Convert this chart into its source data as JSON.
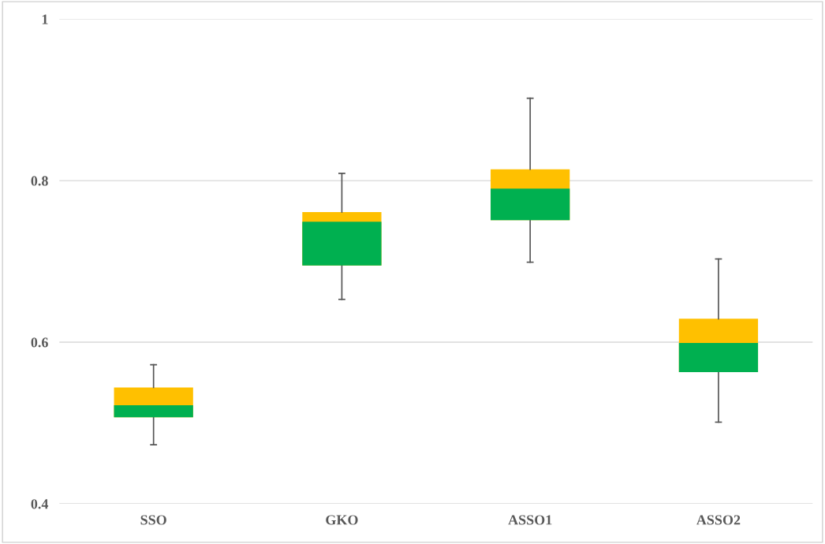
{
  "chart_data": {
    "type": "box",
    "categories": [
      "SSO",
      "GKO",
      "ASSO1",
      "ASSO2"
    ],
    "boxes": [
      {
        "low": 0.473,
        "q1": 0.507,
        "median": 0.522,
        "q3": 0.544,
        "high": 0.572
      },
      {
        "low": 0.653,
        "q1": 0.695,
        "median": 0.749,
        "q3": 0.761,
        "high": 0.809
      },
      {
        "low": 0.699,
        "q1": 0.751,
        "median": 0.79,
        "q3": 0.814,
        "high": 0.902
      },
      {
        "low": 0.501,
        "q1": 0.563,
        "median": 0.599,
        "q3": 0.629,
        "high": 0.703
      }
    ],
    "color": "#00b050",
    "colors": [
      "#ffc000",
      "#ffc000",
      "#ffc000",
      "#ffc000"
    ],
    "ylim": [
      0.4,
      1
    ],
    "yticks": [
      0.4,
      0.6,
      0.8,
      1
    ],
    "grid": "y",
    "legend": false
  }
}
